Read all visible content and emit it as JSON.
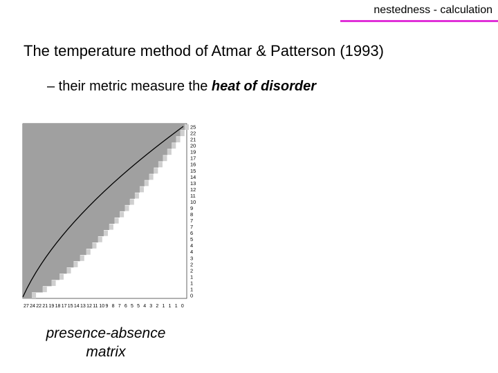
{
  "slide": {
    "header_label": "nestedness - calculation",
    "accent_color": "#e030d8",
    "title": "The temperature method of Atmar & Patterson (1993)",
    "bullet_prefix": "– their metric measure the ",
    "bullet_emphasis": "heat of disorder",
    "caption": "presence-absence\nmatrix"
  },
  "matrix": {
    "fill_color": "#a0a0a0",
    "row_labels": [
      "25",
      "22",
      "21",
      "20",
      "19",
      "17",
      "16",
      "15",
      "14",
      "13",
      "12",
      "11",
      "10",
      "9",
      "8",
      "7",
      "7",
      "6",
      "5",
      "4",
      "4",
      "3",
      "2",
      "2",
      "1",
      "1",
      "1",
      "0"
    ],
    "column_labels": [
      "27",
      "24",
      "22",
      "21",
      "19",
      "18",
      "17",
      "15",
      "14",
      "13",
      "12",
      "11",
      "10",
      "9",
      "8",
      "7",
      "6",
      "5",
      "5",
      "4",
      "3",
      "2",
      "1",
      "1",
      "1",
      "0"
    ]
  }
}
